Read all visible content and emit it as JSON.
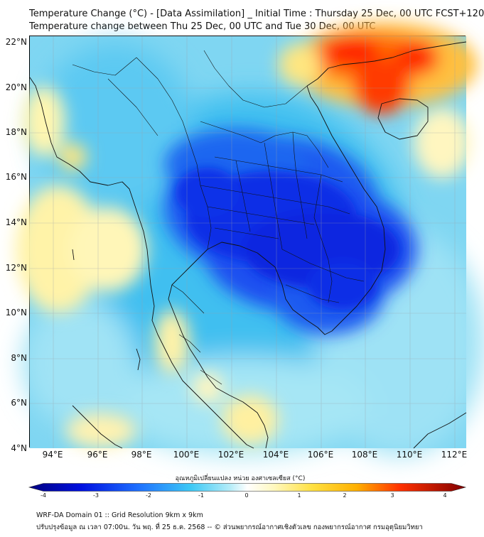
{
  "title_line1": "Temperature Change (°C) - [Data Assimilation] _ Initial Time : Thursday 25 Dec, 00 UTC FCST+120",
  "title_line2": "Temperature change between Thu 25 Dec, 00 UTC and Tue 30 Dec, 00 UTC",
  "lat_labels": [
    "22°N",
    "20°N",
    "18°N",
    "16°N",
    "14°N",
    "12°N",
    "10°N",
    "8°N",
    "6°N",
    "4°N"
  ],
  "lon_labels": [
    "94°E",
    "96°E",
    "98°E",
    "100°E",
    "102°E",
    "104°E",
    "106°E",
    "108°E",
    "110°E",
    "112°E"
  ],
  "colorbar": {
    "label": "อุณหภูมิเปลี่ยนแปลง หน่วย องศาเซลเซียส (°C)",
    "ticks": [
      "-4",
      "-3",
      "-2",
      "-1",
      "0",
      "1",
      "2",
      "3",
      "4"
    ],
    "min": -4,
    "max": 4
  },
  "footer_line1": "WRF-DA Domain 01 :: Grid Resolution 9km x 9km",
  "footer_line2": "ปรับปรุงข้อมูล ณ เวลา 07:00น. วัน พฤ. ที่ 25 ธ.ค. 2568 -- © ส่วนพยากรณ์อากาศเชิงตัวเลข กองพยากรณ์อากาศ กรมอุตุนิยมวิทยา",
  "colors": {
    "strong_cooling": "#0a2ee6",
    "cooling": "#1e90ff",
    "mild_cooling": "#5ccff5",
    "slight_cooling": "#aeeaf6",
    "neutral": "#ffffff",
    "slight_warming": "#fff6b0",
    "warming": "#ffd700",
    "strong_warming": "#ff1a00"
  }
}
